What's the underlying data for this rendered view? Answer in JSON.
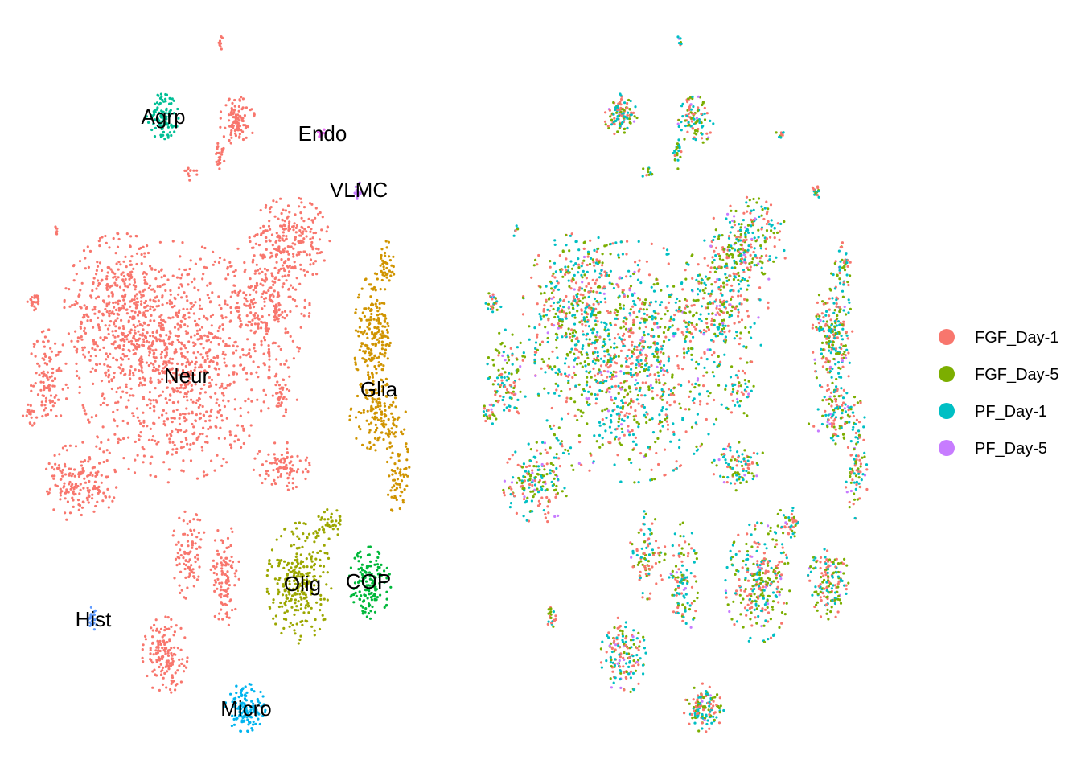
{
  "chart_data": [
    {
      "type": "scatter",
      "title": "",
      "xlabel": "",
      "ylabel": "",
      "colored_by": "cell type",
      "legend": "none",
      "grid": false,
      "axes": false,
      "clusters": [
        {
          "name": "Neur",
          "color": "#F8766D"
        },
        {
          "name": "Agrp",
          "color": "#00BF96"
        },
        {
          "name": "Endo",
          "color": "#E76BF3"
        },
        {
          "name": "VLMC",
          "color": "#C77CFF"
        },
        {
          "name": "Glia",
          "color": "#D09400"
        },
        {
          "name": "Olig",
          "color": "#9CA700"
        },
        {
          "name": "COP",
          "color": "#00B83A"
        },
        {
          "name": "Hist",
          "color": "#619CFF"
        },
        {
          "name": "Micro",
          "color": "#00B4EF"
        }
      ]
    },
    {
      "type": "scatter",
      "title": "",
      "xlabel": "",
      "ylabel": "",
      "colored_by": "sample",
      "legend": "right",
      "grid": false,
      "axes": false,
      "series": [
        {
          "name": "FGF_Day-1",
          "color": "#F8766D"
        },
        {
          "name": "FGF_Day-5",
          "color": "#7CAE00"
        },
        {
          "name": "PF_Day-1",
          "color": "#00BFC4"
        },
        {
          "name": "PF_Day-5",
          "color": "#C77CFF"
        }
      ]
    }
  ]
}
